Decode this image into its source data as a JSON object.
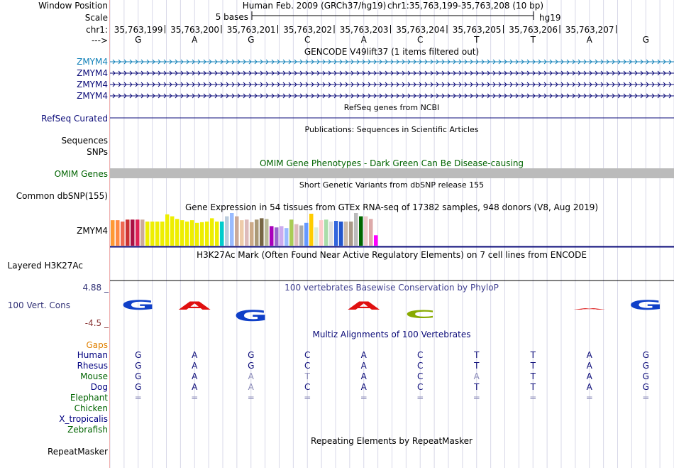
{
  "header": {
    "window_position_label": "Window Position",
    "assembly_text": "Human Feb. 2009 (GRCh37/hg19)",
    "position_text": "chr1:35,763,199-35,763,208 (10 bp)",
    "scale_label": "Scale",
    "scale_text": "5 bases",
    "scale_db": "hg19",
    "chrom_label": "chr1:",
    "strand_label": "--->",
    "coordinates": [
      "35,763,199",
      "35,763,200",
      "35,763,201",
      "35,763,202",
      "35,763,203",
      "35,763,204",
      "35,763,205",
      "35,763,206",
      "35,763,207"
    ],
    "bases": [
      "G",
      "A",
      "G",
      "C",
      "A",
      "C",
      "T",
      "T",
      "A",
      "G"
    ]
  },
  "gencode": {
    "title": "GENCODE V49lift37 (1 items filtered out)",
    "rows": [
      {
        "label": "ZMYM4",
        "color": "#1080b8"
      },
      {
        "label": "ZMYM4",
        "color": "#0a0a78"
      },
      {
        "label": "ZMYM4",
        "color": "#0a0a78"
      },
      {
        "label": "ZMYM4",
        "color": "#0a0a78"
      }
    ]
  },
  "refseq": {
    "title": "RefSeq genes from NCBI",
    "label": "RefSeq Curated"
  },
  "publications": {
    "title": "Publications: Sequences in Scientific Articles",
    "label1": "Sequences",
    "label2": "SNPs"
  },
  "omim": {
    "title": "OMIM Gene Phenotypes - Dark Green Can Be Disease-causing",
    "label": "OMIM Genes",
    "label_color": "#006400"
  },
  "dbsnp": {
    "title": "Short Genetic Variants from dbSNP release 155",
    "label": "Common dbSNP(155)"
  },
  "gtex": {
    "title": "Gene Expression in 54 tissues from GTEx RNA-seq of 17382 samples, 948 donors (V8, Aug 2019)",
    "label": "ZMYM4",
    "bars": [
      {
        "v": 0.78,
        "c": "#ff9933"
      },
      {
        "v": 0.78,
        "c": "#ff8a44"
      },
      {
        "v": 0.74,
        "c": "#ee6a50"
      },
      {
        "v": 0.8,
        "c": "#cc3333"
      },
      {
        "v": 0.8,
        "c": "#aa1144"
      },
      {
        "v": 0.8,
        "c": "#dd2255"
      },
      {
        "v": 0.8,
        "c": "#ccaa99"
      },
      {
        "v": 0.74,
        "c": "#eeee00"
      },
      {
        "v": 0.74,
        "c": "#eeee00"
      },
      {
        "v": 0.74,
        "c": "#eeee00"
      },
      {
        "v": 0.74,
        "c": "#eeee00"
      },
      {
        "v": 0.96,
        "c": "#eeee00"
      },
      {
        "v": 0.9,
        "c": "#eeee00"
      },
      {
        "v": 0.82,
        "c": "#eeee00"
      },
      {
        "v": 0.78,
        "c": "#eeee00"
      },
      {
        "v": 0.74,
        "c": "#eeee00"
      },
      {
        "v": 0.78,
        "c": "#eeee00"
      },
      {
        "v": 0.7,
        "c": "#eeee00"
      },
      {
        "v": 0.72,
        "c": "#eeee00"
      },
      {
        "v": 0.74,
        "c": "#eeee00"
      },
      {
        "v": 0.84,
        "c": "#eeee00"
      },
      {
        "v": 0.74,
        "c": "#eeee00"
      },
      {
        "v": 0.74,
        "c": "#00cccc"
      },
      {
        "v": 0.9,
        "c": "#bbccdd"
      },
      {
        "v": 1.0,
        "c": "#99bbff"
      },
      {
        "v": 0.9,
        "c": "#ccaa99"
      },
      {
        "v": 0.78,
        "c": "#eeccaa"
      },
      {
        "v": 0.8,
        "c": "#ddbbbb"
      },
      {
        "v": 0.72,
        "c": "#ccaa88"
      },
      {
        "v": 0.8,
        "c": "#aa9977"
      },
      {
        "v": 0.84,
        "c": "#776644"
      },
      {
        "v": 0.82,
        "c": "#bbbb99"
      },
      {
        "v": 0.6,
        "c": "#aa00bb"
      },
      {
        "v": 0.56,
        "c": "#9966cc"
      },
      {
        "v": 0.6,
        "c": "#ccaaee"
      },
      {
        "v": 0.54,
        "c": "#99bbff"
      },
      {
        "v": 0.8,
        "c": "#aacc55"
      },
      {
        "v": 0.66,
        "c": "#ddbbbb"
      },
      {
        "v": 0.62,
        "c": "#aaaaaa"
      },
      {
        "v": 0.7,
        "c": "#6699ff"
      },
      {
        "v": 0.98,
        "c": "#ffcc00"
      },
      {
        "v": 0.56,
        "c": "#ddeedd"
      },
      {
        "v": 0.78,
        "c": "#ffcccc"
      },
      {
        "v": 0.8,
        "c": "#aaddaa"
      },
      {
        "v": 0.74,
        "c": "#dddddd"
      },
      {
        "v": 0.76,
        "c": "#3366dd"
      },
      {
        "v": 0.74,
        "c": "#2255cc"
      },
      {
        "v": 0.74,
        "c": "#ccbbaa"
      },
      {
        "v": 0.74,
        "c": "#aa9988"
      },
      {
        "v": 1.0,
        "c": "#bbbbbb"
      },
      {
        "v": 0.9,
        "c": "#006600"
      },
      {
        "v": 0.9,
        "c": "#eecccc"
      },
      {
        "v": 0.82,
        "c": "#ddaaaa"
      },
      {
        "v": 0.32,
        "c": "#ff00ff"
      }
    ]
  },
  "h3k27ac": {
    "title": "H3K27Ac Mark (Often Found Near Active Regulatory Elements) on 7 cell lines from ENCODE",
    "label": "Layered H3K27Ac"
  },
  "phylop": {
    "title": "100 vertebrates Basewise Conservation by PhyloP",
    "label": "100 Vert. Cons",
    "max_label": "4.88 _",
    "min_label": "-4.5 _",
    "max_color": "#333377",
    "min_color": "#883333",
    "logos": [
      {
        "letter": "G",
        "color": "#1040c8",
        "above": true,
        "height": 0.35
      },
      {
        "letter": "A",
        "color": "#e01010",
        "above": true,
        "height": 0.3
      },
      {
        "letter": "G",
        "color": "#1040c8",
        "above": false,
        "height": 0.4
      },
      {
        "letter": "",
        "color": "#ffffff",
        "above": true,
        "height": 0
      },
      {
        "letter": "A",
        "color": "#e01010",
        "above": true,
        "height": 0.3
      },
      {
        "letter": "C",
        "color": "#88aa00",
        "above": false,
        "height": 0.3
      },
      {
        "letter": "",
        "color": "#ffffff",
        "above": true,
        "height": 0
      },
      {
        "letter": "",
        "color": "#ffffff",
        "above": true,
        "height": 0
      },
      {
        "letter": "A",
        "color": "#e03030",
        "above": true,
        "height": 0.05
      },
      {
        "letter": "G",
        "color": "#1040c8",
        "above": true,
        "height": 0.35
      }
    ]
  },
  "multiz": {
    "title": "Multiz Alignments of 100 Vertebrates",
    "gaps_label": "Gaps",
    "gaps_color": "#e08000",
    "species": [
      {
        "name": "Human",
        "color": "#000080",
        "seq": [
          "G",
          "A",
          "G",
          "C",
          "A",
          "C",
          "T",
          "T",
          "A",
          "G"
        ],
        "light": []
      },
      {
        "name": "Rhesus",
        "color": "#000080",
        "seq": [
          "G",
          "A",
          "G",
          "C",
          "A",
          "C",
          "T",
          "T",
          "A",
          "G"
        ],
        "light": []
      },
      {
        "name": "Mouse",
        "color": "#006400",
        "seq": [
          "G",
          "A",
          "A",
          "T",
          "A",
          "C",
          "A",
          "T",
          "A",
          "G"
        ],
        "light": [
          2,
          3,
          6
        ]
      },
      {
        "name": "Dog",
        "color": "#000080",
        "seq": [
          "G",
          "A",
          "A",
          "C",
          "A",
          "C",
          "T",
          "T",
          "A",
          "G"
        ],
        "light": [
          2
        ]
      },
      {
        "name": "Elephant",
        "color": "#006400",
        "seq": [
          "=",
          "=",
          "=",
          "=",
          "=",
          "=",
          "=",
          "=",
          "=",
          "="
        ],
        "light": [
          0,
          1,
          2,
          3,
          4,
          5,
          6,
          7,
          8,
          9
        ]
      },
      {
        "name": "Chicken",
        "color": "#006400",
        "seq": [],
        "light": []
      },
      {
        "name": "X_tropicalis",
        "color": "#000080",
        "seq": [],
        "light": []
      },
      {
        "name": "Zebrafish",
        "color": "#006400",
        "seq": [],
        "light": []
      }
    ]
  },
  "repeatmasker": {
    "title": "Repeating Elements by RepeatMasker",
    "label": "RepeatMasker"
  },
  "colors": {
    "gridline": "#d8d8e8",
    "label_divider": "#f0b0b0",
    "gene_blue": "#0a0a78",
    "omim_gray": "#bbbbbb"
  }
}
